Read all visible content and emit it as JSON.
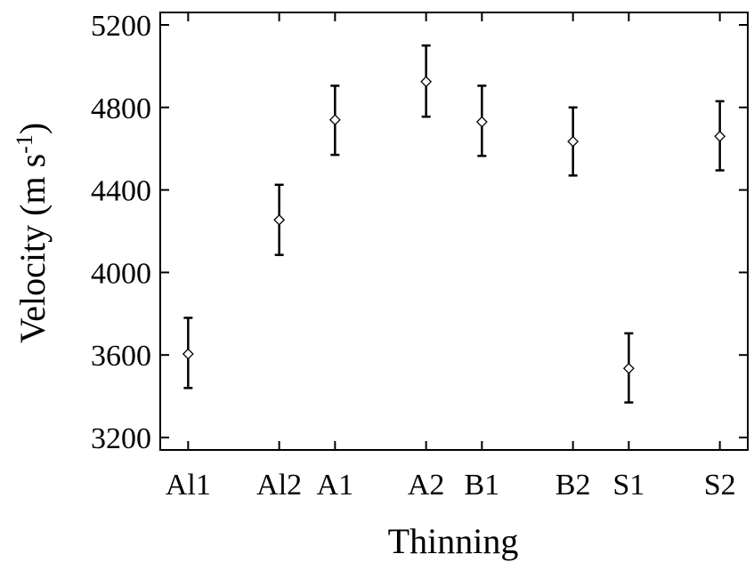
{
  "chart_data": {
    "type": "scatter",
    "xlabel": "Thinning",
    "ylabel_main": "Velocity (m s",
    "ylabel_sup": "-1",
    "ylabel_close": ")",
    "ylim": [
      3200,
      5200
    ],
    "yticks": [
      3200,
      3600,
      4000,
      4400,
      4800,
      5200
    ],
    "categories": [
      "Al1",
      "Al2",
      "A1",
      "A2",
      "B1",
      "B2",
      "S1",
      "S2"
    ],
    "groups": [
      [
        "Al1",
        "Al2"
      ],
      [
        "A1",
        "A2"
      ],
      [
        "B1",
        "B2"
      ],
      [
        "S1",
        "S2"
      ]
    ],
    "marker": "diamond",
    "error_bars": true,
    "grid": false,
    "points": [
      {
        "category": "Al1",
        "value": 3605,
        "low": 3440,
        "high": 3780
      },
      {
        "category": "Al2",
        "value": 4255,
        "low": 4085,
        "high": 4425
      },
      {
        "category": "A1",
        "value": 4740,
        "low": 4570,
        "high": 4905
      },
      {
        "category": "A2",
        "value": 4925,
        "low": 4755,
        "high": 5100
      },
      {
        "category": "B1",
        "value": 4730,
        "low": 4565,
        "high": 4905
      },
      {
        "category": "B2",
        "value": 4635,
        "low": 4470,
        "high": 4800
      },
      {
        "category": "S1",
        "value": 3535,
        "low": 3370,
        "high": 3705
      },
      {
        "category": "S2",
        "value": 4660,
        "low": 4495,
        "high": 4830
      }
    ]
  }
}
